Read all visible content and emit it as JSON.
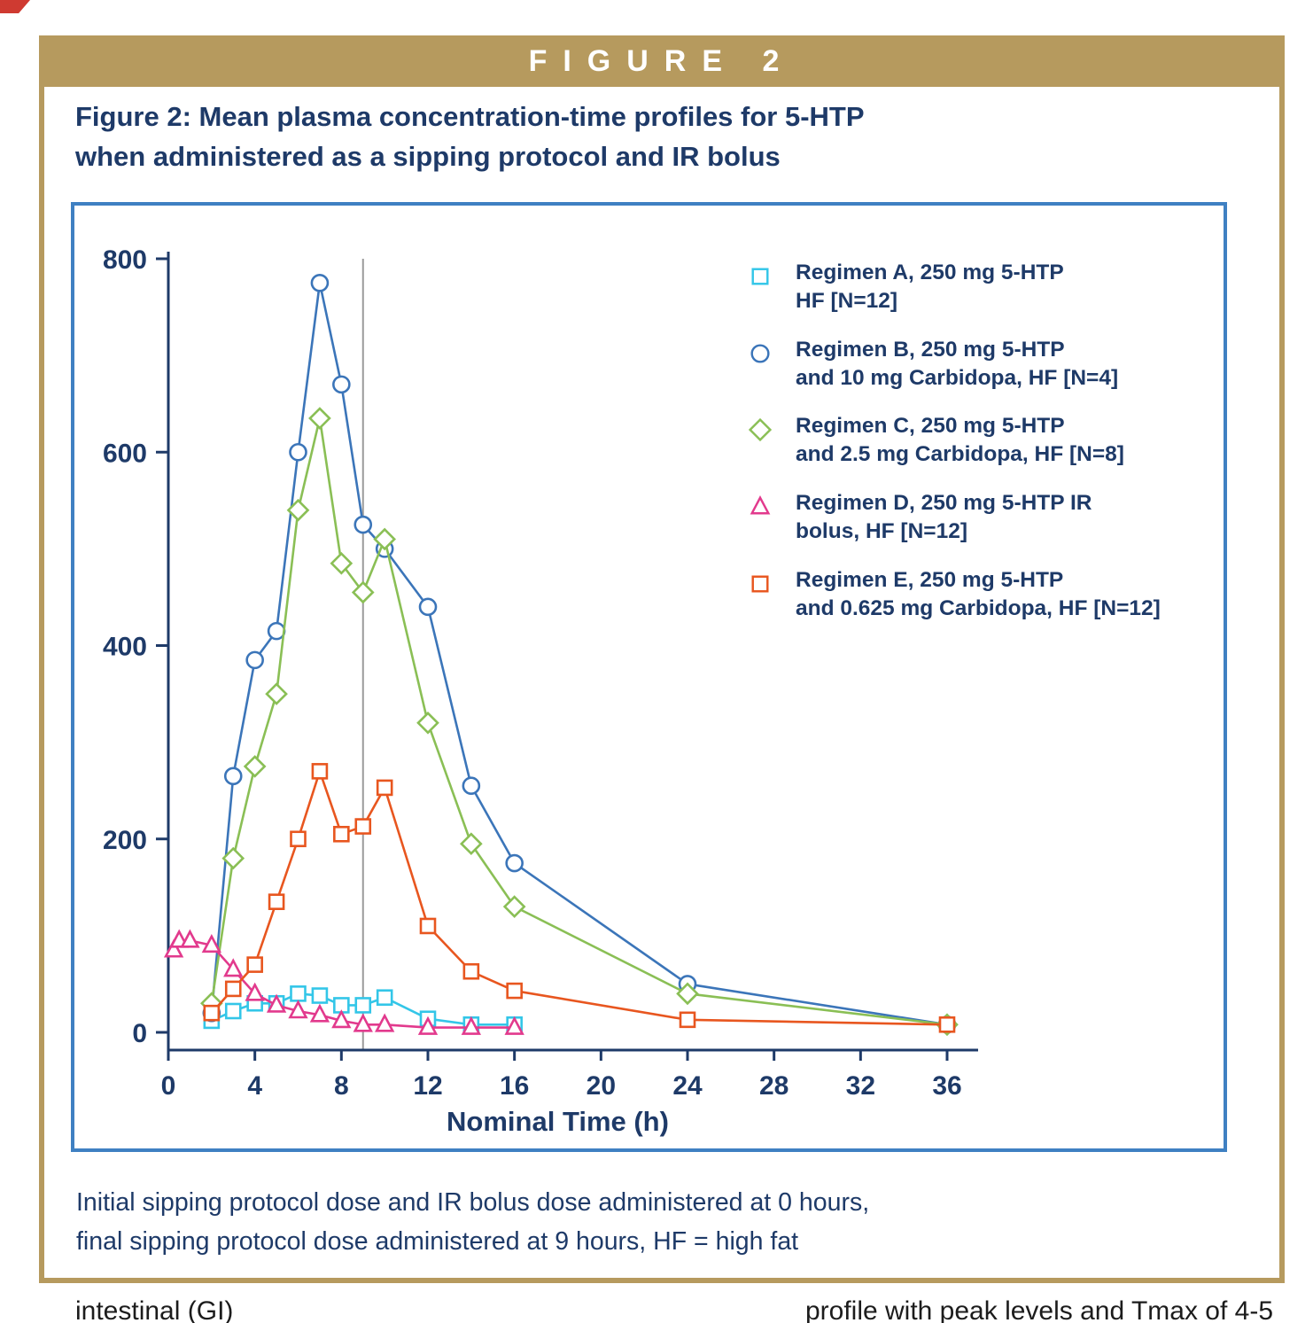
{
  "banner": {
    "label": "FIGURE 2"
  },
  "title": {
    "line1": "Figure 2: Mean plasma concentration-time profiles for 5-HTP",
    "line2": "when administered as a sipping protocol and IR bolus"
  },
  "caption": {
    "line1": "Initial sipping protocol dose and IR bolus dose administered at 0 hours,",
    "line2": "final sipping protocol dose administered at 9 hours, HF = high fat"
  },
  "footer": {
    "visible_fragment_left": "intestinal (GI)",
    "visible_fragment_right": "profile with peak levels and Tmax of 4-5"
  },
  "colors": {
    "frame_tan": "#b69a5e",
    "navy": "#1e3a68",
    "chart_border_blue": "#3f80c2",
    "gridline": "#9a9a9a",
    "series_a_cyan": "#33c6e8",
    "series_b_blue": "#3b75b9",
    "series_c_green": "#8abf55",
    "series_d_magenta": "#e23a8d",
    "series_e_orange": "#e8561f"
  },
  "chart_data": {
    "type": "line",
    "title": "Mean plasma concentration-time profiles for 5-HTP",
    "xlabel": "Nominal Time (h)",
    "ylabel": "",
    "xlim": [
      0,
      36
    ],
    "ylim": [
      0,
      800
    ],
    "xticks": [
      0,
      4,
      8,
      12,
      16,
      20,
      24,
      28,
      32,
      36
    ],
    "yticks": [
      0,
      200,
      400,
      600,
      800
    ],
    "vline_x": 9,
    "grid": false,
    "legend_position": "inside upper right",
    "series": [
      {
        "id": "a",
        "name": "Regimen A, 250 mg 5-HTP HF [N=12]",
        "legend_lines": [
          "Regimen A, 250 mg 5-HTP",
          "HF [N=12]"
        ],
        "marker": "square",
        "color": "#33c6e8",
        "x": [
          2,
          3,
          4,
          5,
          6,
          7,
          8,
          9,
          10,
          12,
          14,
          16
        ],
        "y": [
          12,
          22,
          30,
          30,
          40,
          38,
          28,
          28,
          36,
          14,
          8,
          8
        ]
      },
      {
        "id": "b",
        "name": "Regimen B, 250 mg 5-HTP and 10 mg Carbidopa, HF [N=4]",
        "legend_lines": [
          "Regimen B, 250 mg 5-HTP",
          "and 10 mg Carbidopa, HF [N=4]"
        ],
        "marker": "circle",
        "color": "#3b75b9",
        "x": [
          2,
          3,
          4,
          5,
          6,
          7,
          8,
          9,
          10,
          12,
          14,
          16,
          24,
          36
        ],
        "y": [
          20,
          265,
          385,
          415,
          600,
          775,
          670,
          525,
          500,
          440,
          255,
          175,
          50,
          8
        ]
      },
      {
        "id": "c",
        "name": "Regimen C, 250 mg 5-HTP and 2.5 mg Carbidopa, HF [N=8]",
        "legend_lines": [
          "Regimen C, 250 mg 5-HTP",
          "and 2.5 mg Carbidopa, HF [N=8]"
        ],
        "marker": "diamond",
        "color": "#8abf55",
        "x": [
          2,
          3,
          4,
          5,
          6,
          7,
          8,
          9,
          10,
          12,
          14,
          16,
          24,
          36
        ],
        "y": [
          30,
          180,
          275,
          350,
          540,
          635,
          485,
          455,
          510,
          320,
          195,
          130,
          40,
          8
        ]
      },
      {
        "id": "d",
        "name": "Regimen D, 250 mg 5-HTP IR bolus, HF [N=12]",
        "legend_lines": [
          "Regimen D, 250 mg 5-HTP IR",
          "bolus, HF [N=12]"
        ],
        "marker": "triangle",
        "color": "#e23a8d",
        "x": [
          0.25,
          0.5,
          1,
          2,
          3,
          4,
          5,
          6,
          7,
          8,
          9,
          10,
          12,
          14,
          16
        ],
        "y": [
          85,
          95,
          95,
          90,
          65,
          40,
          28,
          22,
          18,
          12,
          8,
          8,
          5,
          5,
          5
        ]
      },
      {
        "id": "e",
        "name": "Regimen E, 250 mg 5-HTP and 0.625 mg Carbidopa, HF [N=12]",
        "legend_lines": [
          "Regimen E, 250 mg 5-HTP",
          "and 0.625 mg Carbidopa, HF [N=12]"
        ],
        "marker": "square",
        "color": "#e8561f",
        "x": [
          2,
          3,
          4,
          5,
          6,
          7,
          8,
          9,
          10,
          12,
          14,
          16,
          24,
          36
        ],
        "y": [
          20,
          45,
          70,
          135,
          200,
          270,
          205,
          213,
          253,
          110,
          63,
          43,
          13,
          8
        ]
      }
    ]
  }
}
